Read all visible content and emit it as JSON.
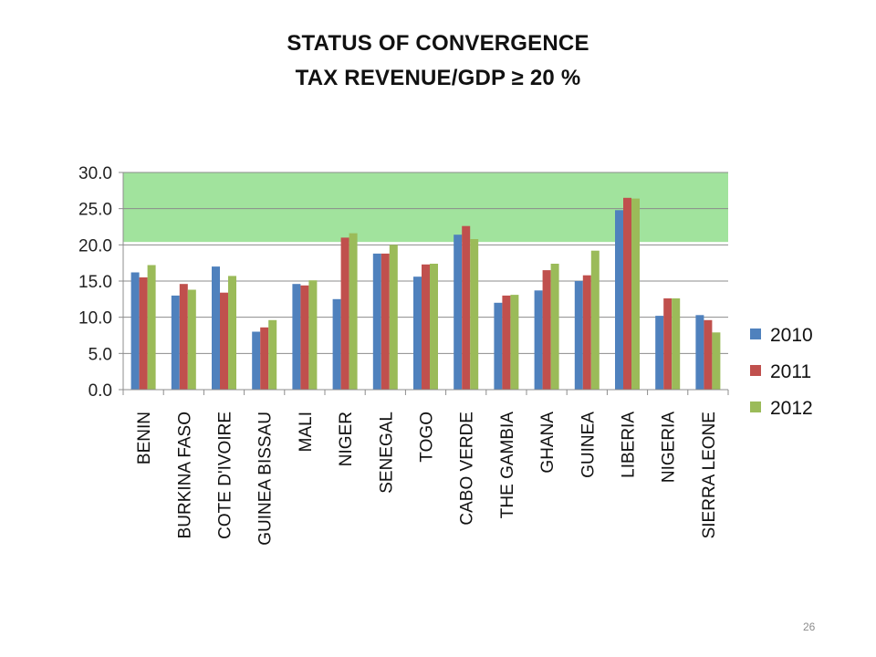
{
  "title_line1": "STATUS OF CONVERGENCE",
  "title_line2": "TAX REVENUE/GDP ≥ 20 %",
  "page_number": "26",
  "chart_data": {
    "type": "bar",
    "categories": [
      "BENIN",
      "BURKINA FASO",
      "COTE D'IVOIRE",
      "GUINEA BISSAU",
      "MALI",
      "NIGER",
      "SENEGAL",
      "TOGO",
      "CABO VERDE",
      "THE GAMBIA",
      "GHANA",
      "GUINEA",
      "LIBERIA",
      "NIGERIA",
      "SIERRA LEONE"
    ],
    "series": [
      {
        "name": "2010",
        "color": "#4f81bd",
        "values": [
          16.2,
          13.0,
          17.0,
          8.0,
          14.6,
          12.5,
          18.8,
          15.6,
          21.4,
          12.0,
          13.7,
          15.0,
          24.8,
          10.2,
          10.3
        ]
      },
      {
        "name": "2011",
        "color": "#c0504d",
        "values": [
          15.5,
          14.6,
          13.4,
          8.6,
          14.4,
          21.0,
          18.8,
          17.3,
          22.6,
          13.0,
          16.5,
          15.8,
          26.5,
          12.6,
          9.6
        ]
      },
      {
        "name": "2012",
        "color": "#9bbb59",
        "values": [
          17.2,
          13.8,
          15.7,
          9.6,
          15.1,
          21.6,
          20.0,
          17.4,
          20.8,
          13.1,
          17.4,
          19.2,
          26.4,
          12.6,
          7.9
        ]
      }
    ],
    "ylim": [
      0,
      30
    ],
    "yticks": [
      "0.0",
      "5.0",
      "10.0",
      "15.0",
      "20.0",
      "25.0",
      "30.0"
    ],
    "target_band": {
      "from": 20.4,
      "to": 30,
      "color": "#a1e39d"
    },
    "grid": true,
    "legend": "right",
    "xlabel": "",
    "ylabel": ""
  }
}
